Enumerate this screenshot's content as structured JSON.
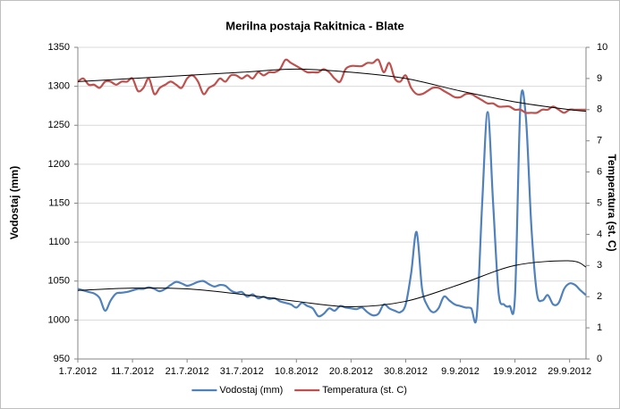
{
  "chart_data": {
    "type": "line",
    "title": "Merilna postaja Rakitnica - Blate",
    "y_label": "Vodostaj (mm)",
    "y2_label": "Temperatura (st. C)",
    "x": [
      "1.7.2012",
      "2.7.2012",
      "3.7.2012",
      "4.7.2012",
      "5.7.2012",
      "6.7.2012",
      "7.7.2012",
      "8.7.2012",
      "9.7.2012",
      "10.7.2012",
      "11.7.2012",
      "12.7.2012",
      "13.7.2012",
      "14.7.2012",
      "15.7.2012",
      "16.7.2012",
      "17.7.2012",
      "18.7.2012",
      "19.7.2012",
      "20.7.2012",
      "21.7.2012",
      "22.7.2012",
      "23.7.2012",
      "24.7.2012",
      "25.7.2012",
      "26.7.2012",
      "27.7.2012",
      "28.7.2012",
      "29.7.2012",
      "30.7.2012",
      "31.7.2012",
      "1.8.2012",
      "2.8.2012",
      "3.8.2012",
      "4.8.2012",
      "5.8.2012",
      "6.8.2012",
      "7.8.2012",
      "8.8.2012",
      "9.8.2012",
      "10.8.2012",
      "11.8.2012",
      "12.8.2012",
      "13.8.2012",
      "14.8.2012",
      "15.8.2012",
      "16.8.2012",
      "17.8.2012",
      "18.8.2012",
      "19.8.2012",
      "20.8.2012",
      "21.8.2012",
      "22.8.2012",
      "23.8.2012",
      "24.8.2012",
      "25.8.2012",
      "26.8.2012",
      "27.8.2012",
      "28.8.2012",
      "29.8.2012",
      "30.8.2012",
      "31.8.2012",
      "1.9.2012",
      "2.9.2012",
      "3.9.2012",
      "4.9.2012",
      "5.9.2012",
      "6.9.2012",
      "7.9.2012",
      "8.9.2012",
      "9.9.2012",
      "10.9.2012",
      "11.9.2012",
      "12.9.2012",
      "13.9.2012",
      "14.9.2012",
      "15.9.2012",
      "16.9.2012",
      "17.9.2012",
      "18.9.2012",
      "19.9.2012",
      "20.9.2012",
      "21.9.2012",
      "22.9.2012",
      "23.9.2012",
      "24.9.2012",
      "25.9.2012",
      "26.9.2012",
      "27.9.2012",
      "28.9.2012",
      "29.9.2012",
      "30.9.2012",
      "1.10.2012",
      "2.10.2012"
    ],
    "xlim": [
      "1.7.2012",
      "2.10.2012"
    ],
    "xticks": [
      "1.7.2012",
      "11.7.2012",
      "21.7.2012",
      "31.7.2012",
      "10.8.2012",
      "20.8.2012",
      "30.8.2012",
      "9.9.2012",
      "19.9.2012",
      "29.9.2012"
    ],
    "ylim": [
      950,
      1350
    ],
    "yticks": [
      950,
      1000,
      1050,
      1100,
      1150,
      1200,
      1250,
      1300,
      1350
    ],
    "y2lim": [
      0,
      10
    ],
    "y2ticks": [
      0,
      1,
      2,
      3,
      4,
      5,
      6,
      7,
      8,
      9,
      10
    ],
    "grid": true,
    "legend": "bottom",
    "series": [
      {
        "name": "Vodostaj (mm)",
        "color": "#4f81bd",
        "values": [
          1040,
          1038,
          1036,
          1034,
          1028,
          1012,
          1025,
          1034,
          1035,
          1036,
          1038,
          1040,
          1040,
          1042,
          1040,
          1037,
          1040,
          1045,
          1049,
          1047,
          1044,
          1046,
          1049,
          1050,
          1046,
          1043,
          1045,
          1044,
          1038,
          1035,
          1036,
          1030,
          1033,
          1028,
          1030,
          1027,
          1028,
          1024,
          1022,
          1020,
          1016,
          1022,
          1018,
          1015,
          1005,
          1008,
          1015,
          1012,
          1018,
          1016,
          1015,
          1014,
          1016,
          1010,
          1006,
          1008,
          1020,
          1015,
          1012,
          1010,
          1020,
          1060,
          1113,
          1040,
          1018,
          1010,
          1015,
          1030,
          1025,
          1020,
          1018,
          1016,
          1015,
          1005,
          1150,
          1267,
          1150,
          1035,
          1020,
          1018,
          1030,
          1276,
          1260,
          1120,
          1035,
          1025,
          1032,
          1020,
          1022,
          1040,
          1047,
          1045,
          1038,
          1032
        ]
      },
      {
        "name": "Temperatura (st. C)",
        "color": "#c0504d",
        "axis": "y2",
        "values": [
          8.9,
          9.0,
          8.8,
          8.8,
          8.7,
          8.9,
          8.9,
          8.8,
          8.9,
          8.9,
          9.0,
          8.6,
          8.7,
          9.0,
          8.5,
          8.7,
          8.8,
          8.9,
          8.8,
          8.7,
          9.0,
          9.1,
          8.9,
          8.5,
          8.7,
          8.8,
          9.0,
          8.9,
          9.1,
          9.1,
          9.0,
          9.1,
          9.0,
          9.2,
          9.1,
          9.2,
          9.2,
          9.3,
          9.6,
          9.5,
          9.4,
          9.3,
          9.2,
          9.2,
          9.2,
          9.3,
          9.2,
          9.0,
          8.9,
          9.3,
          9.4,
          9.4,
          9.4,
          9.5,
          9.5,
          9.6,
          9.2,
          9.5,
          9.0,
          8.9,
          9.1,
          8.7,
          8.5,
          8.5,
          8.6,
          8.7,
          8.7,
          8.6,
          8.5,
          8.4,
          8.4,
          8.5,
          8.5,
          8.4,
          8.3,
          8.2,
          8.2,
          8.1,
          8.1,
          8.1,
          8.0,
          8.0,
          7.9,
          7.9,
          7.9,
          8.0,
          8.0,
          8.1,
          8.0,
          7.9,
          8.0,
          8.0,
          8.0,
          8.0
        ]
      }
    ],
    "trendlines": [
      {
        "color": "#000000",
        "x": [
          "1.7.2012",
          "11.7.2012",
          "21.7.2012",
          "31.7.2012",
          "10.8.2012",
          "20.8.2012",
          "30.8.2012",
          "9.9.2012",
          "19.9.2012",
          "29.9.2012",
          "2.10.2012"
        ],
        "values": [
          1038,
          1041,
          1040,
          1033,
          1024,
          1017,
          1024,
          1046,
          1070,
          1076,
          1068
        ]
      },
      {
        "color": "#000000",
        "axis": "y2",
        "x": [
          "1.7.2012",
          "11.7.2012",
          "21.7.2012",
          "31.7.2012",
          "10.8.2012",
          "20.8.2012",
          "30.8.2012",
          "9.9.2012",
          "19.9.2012",
          "29.9.2012",
          "2.10.2012"
        ],
        "values": [
          8.9,
          9.0,
          9.1,
          9.2,
          9.3,
          9.2,
          9.0,
          8.6,
          8.25,
          8.0,
          7.95
        ]
      }
    ]
  }
}
